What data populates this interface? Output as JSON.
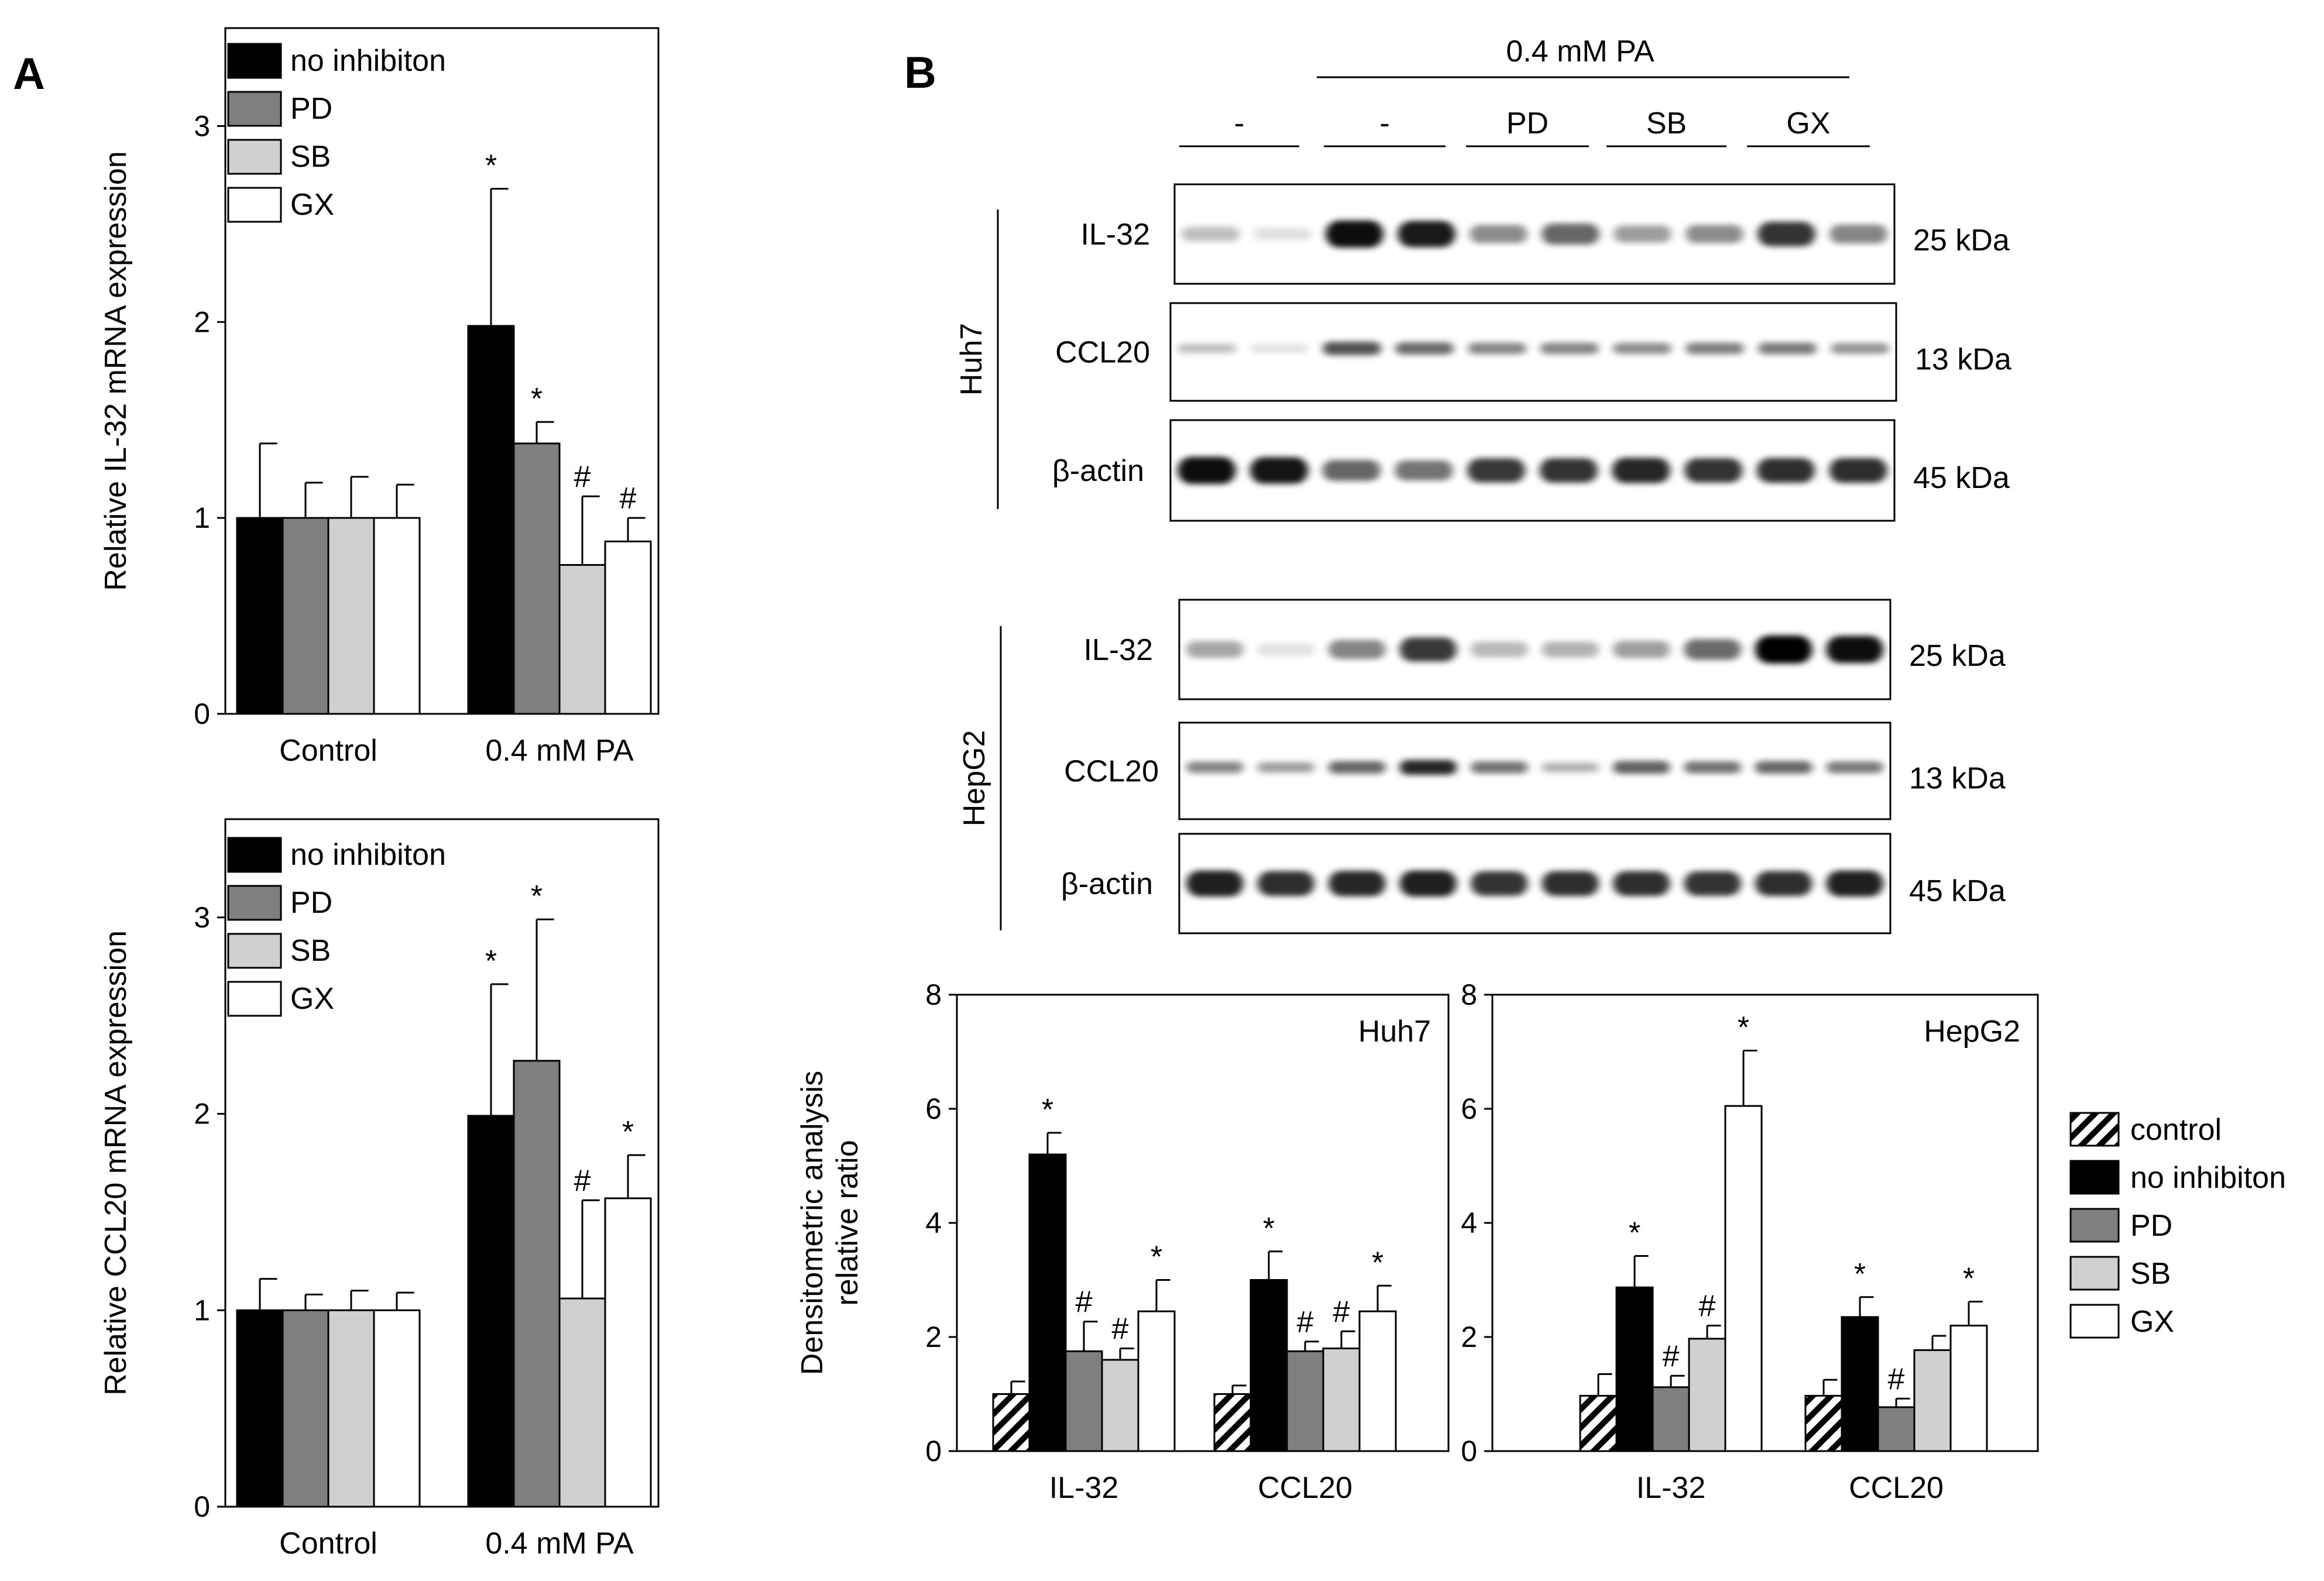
{
  "panels": {
    "a_label": "A",
    "b_label": "B"
  },
  "chart_data": [
    {
      "id": "a_top",
      "type": "bar",
      "title": "",
      "ylabel": "Relative IL-32 mRNA expression",
      "ylim": [
        0,
        3.5
      ],
      "yticks": [
        "0",
        "1",
        "2",
        "3"
      ],
      "categories": [
        "Control",
        "0.4 mM PA"
      ],
      "legend": [
        "no inhibiton",
        "PD",
        "SB",
        "GX"
      ],
      "series": [
        {
          "name": "no inhibiton",
          "values": [
            1.0,
            1.98
          ],
          "errors": [
            0.38,
            0.7
          ],
          "marks": [
            "",
            "*"
          ]
        },
        {
          "name": "PD",
          "values": [
            1.0,
            1.38
          ],
          "errors": [
            0.18,
            0.11
          ],
          "marks": [
            "",
            "*"
          ]
        },
        {
          "name": "SB",
          "values": [
            1.0,
            0.76
          ],
          "errors": [
            0.21,
            0.35
          ],
          "marks": [
            "",
            "#"
          ]
        },
        {
          "name": "GX",
          "values": [
            1.0,
            0.88
          ],
          "errors": [
            0.17,
            0.12
          ],
          "marks": [
            "",
            "#"
          ]
        }
      ]
    },
    {
      "id": "a_bottom",
      "type": "bar",
      "title": "",
      "ylabel": "Relative CCL20 mRNA expression",
      "ylim": [
        0,
        3.5
      ],
      "yticks": [
        "0",
        "1",
        "2",
        "3"
      ],
      "categories": [
        "Control",
        "0.4 mM PA"
      ],
      "legend": [
        "no inhibiton",
        "PD",
        "SB",
        "GX"
      ],
      "series": [
        {
          "name": "no inhibiton",
          "values": [
            1.0,
            1.99
          ],
          "errors": [
            0.16,
            0.67
          ],
          "marks": [
            "",
            "*"
          ]
        },
        {
          "name": "PD",
          "values": [
            1.0,
            2.27
          ],
          "errors": [
            0.08,
            0.72
          ],
          "marks": [
            "",
            "*"
          ]
        },
        {
          "name": "SB",
          "values": [
            1.0,
            1.06
          ],
          "errors": [
            0.1,
            0.5
          ],
          "marks": [
            "",
            "#"
          ]
        },
        {
          "name": "GX",
          "values": [
            1.0,
            1.57
          ],
          "errors": [
            0.09,
            0.22
          ],
          "marks": [
            "",
            "*"
          ]
        }
      ]
    },
    {
      "id": "b_huh7",
      "type": "bar",
      "title": "Huh7",
      "ylabel": "Densitometric analysis relative ratio",
      "ylim": [
        0,
        8
      ],
      "yticks": [
        "0",
        "2",
        "4",
        "6",
        "8"
      ],
      "categories": [
        "IL-32",
        "CCL20"
      ],
      "legend": [
        "control",
        "no inhibiton",
        "PD",
        "SB",
        "GX"
      ],
      "series": [
        {
          "name": "control",
          "values": [
            1.0,
            1.0
          ],
          "errors": [
            0.22,
            0.15
          ],
          "marks": [
            "",
            ""
          ]
        },
        {
          "name": "no inhibiton",
          "values": [
            5.2,
            3.0
          ],
          "errors": [
            0.38,
            0.5
          ],
          "marks": [
            "*",
            "*"
          ]
        },
        {
          "name": "PD",
          "values": [
            1.75,
            1.75
          ],
          "errors": [
            0.52,
            0.17
          ],
          "marks": [
            "#",
            "#"
          ]
        },
        {
          "name": "SB",
          "values": [
            1.6,
            1.8
          ],
          "errors": [
            0.2,
            0.3
          ],
          "marks": [
            "#",
            "#"
          ]
        },
        {
          "name": "GX",
          "values": [
            2.45,
            2.45
          ],
          "errors": [
            0.55,
            0.45
          ],
          "marks": [
            "*",
            "*"
          ]
        }
      ]
    },
    {
      "id": "b_hepg2",
      "type": "bar",
      "title": "HepG2",
      "ylabel": "",
      "ylim": [
        0,
        8
      ],
      "yticks": [
        "0",
        "2",
        "4",
        "6",
        "8"
      ],
      "categories": [
        "IL-32",
        "CCL20"
      ],
      "legend": [
        "control",
        "no inhibiton",
        "PD",
        "SB",
        "GX"
      ],
      "series": [
        {
          "name": "control",
          "values": [
            0.97,
            0.97
          ],
          "errors": [
            0.38,
            0.28
          ],
          "marks": [
            "",
            ""
          ]
        },
        {
          "name": "no inhibiton",
          "values": [
            2.87,
            2.35
          ],
          "errors": [
            0.55,
            0.35
          ],
          "marks": [
            "*",
            "*"
          ]
        },
        {
          "name": "PD",
          "values": [
            1.12,
            0.77
          ],
          "errors": [
            0.2,
            0.15
          ],
          "marks": [
            "#",
            "#"
          ]
        },
        {
          "name": "SB",
          "values": [
            1.97,
            1.77
          ],
          "errors": [
            0.23,
            0.25
          ],
          "marks": [
            "#",
            ""
          ]
        },
        {
          "name": "GX",
          "values": [
            6.05,
            2.2
          ],
          "errors": [
            0.97,
            0.42
          ],
          "marks": [
            "*",
            "*"
          ]
        }
      ]
    }
  ],
  "blot": {
    "treatment_header": "0.4 mM PA",
    "lane_groups": [
      "-",
      "-",
      "PD",
      "SB",
      "GX"
    ],
    "cell_lines": [
      "Huh7",
      "HepG2"
    ],
    "proteins": [
      "IL-32",
      "CCL20",
      "β-actin"
    ],
    "sizes": [
      "25 kDa",
      "13 kDa",
      "45 kDa"
    ],
    "intensity_huh7": [
      [
        0.25,
        0.12,
        0.95,
        0.9,
        0.45,
        0.6,
        0.38,
        0.45,
        0.8,
        0.48
      ],
      [
        0.25,
        0.12,
        0.68,
        0.58,
        0.48,
        0.48,
        0.45,
        0.5,
        0.52,
        0.42
      ],
      [
        0.95,
        0.92,
        0.6,
        0.55,
        0.78,
        0.8,
        0.85,
        0.8,
        0.82,
        0.82
      ]
    ],
    "intensity_hepg2": [
      [
        0.35,
        0.12,
        0.48,
        0.78,
        0.28,
        0.3,
        0.38,
        0.58,
        1.0,
        0.95
      ],
      [
        0.48,
        0.38,
        0.6,
        0.85,
        0.55,
        0.3,
        0.62,
        0.55,
        0.6,
        0.52
      ],
      [
        0.88,
        0.82,
        0.85,
        0.88,
        0.8,
        0.82,
        0.82,
        0.8,
        0.82,
        0.88
      ]
    ]
  },
  "colors": {
    "control": "hatch",
    "no inhibiton": "#000000",
    "PD": "#7f7f7f",
    "SB": "#d0d0d0",
    "GX": "#ffffff"
  }
}
